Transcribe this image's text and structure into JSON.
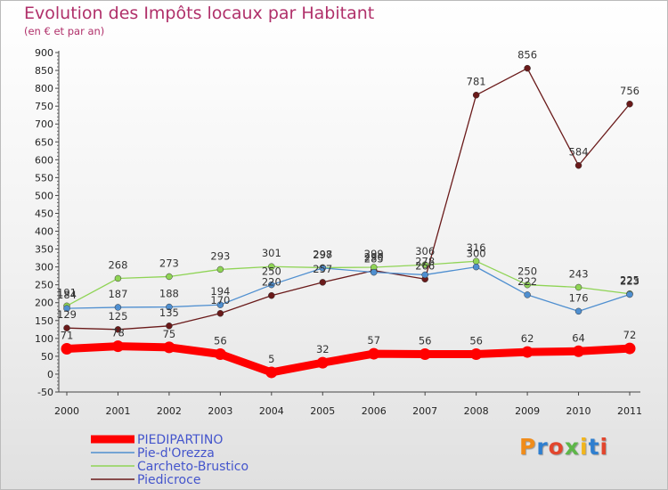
{
  "title": "Evolution des Impôts locaux par Habitant",
  "subtitle": "(en € et par an)",
  "logo": "Proxiti",
  "chart_data": {
    "type": "line",
    "x": [
      "2000",
      "2001",
      "2002",
      "2003",
      "2004",
      "2005",
      "2006",
      "2007",
      "2008",
      "2009",
      "2010",
      "2011"
    ],
    "ylim": [
      -50,
      900
    ],
    "yticks": [
      -50,
      0,
      50,
      100,
      150,
      200,
      250,
      300,
      350,
      400,
      450,
      500,
      550,
      600,
      650,
      700,
      750,
      800,
      850,
      900
    ],
    "grid": false,
    "legend": "bottom-left",
    "series": [
      {
        "name": "PIEDIPARTINO",
        "color": "#ff0000",
        "values": [
          71,
          78,
          75,
          56,
          5,
          32,
          57,
          56,
          56,
          62,
          64,
          72
        ]
      },
      {
        "name": "Pie-d'Orezza",
        "color": "#4f8fd0",
        "values": [
          184,
          187,
          188,
          194,
          250,
          297,
          285,
          278,
          300,
          222,
          176,
          223
        ]
      },
      {
        "name": "Carcheto-Brustico",
        "color": "#8fd455",
        "values": [
          191,
          268,
          273,
          293,
          301,
          298,
          299,
          306,
          316,
          250,
          243,
          225
        ]
      },
      {
        "name": "Piedicroce",
        "color": "#6a1a1a",
        "values": [
          129,
          125,
          135,
          170,
          220,
          257,
          290,
          266,
          781,
          856,
          584,
          756
        ]
      }
    ]
  }
}
